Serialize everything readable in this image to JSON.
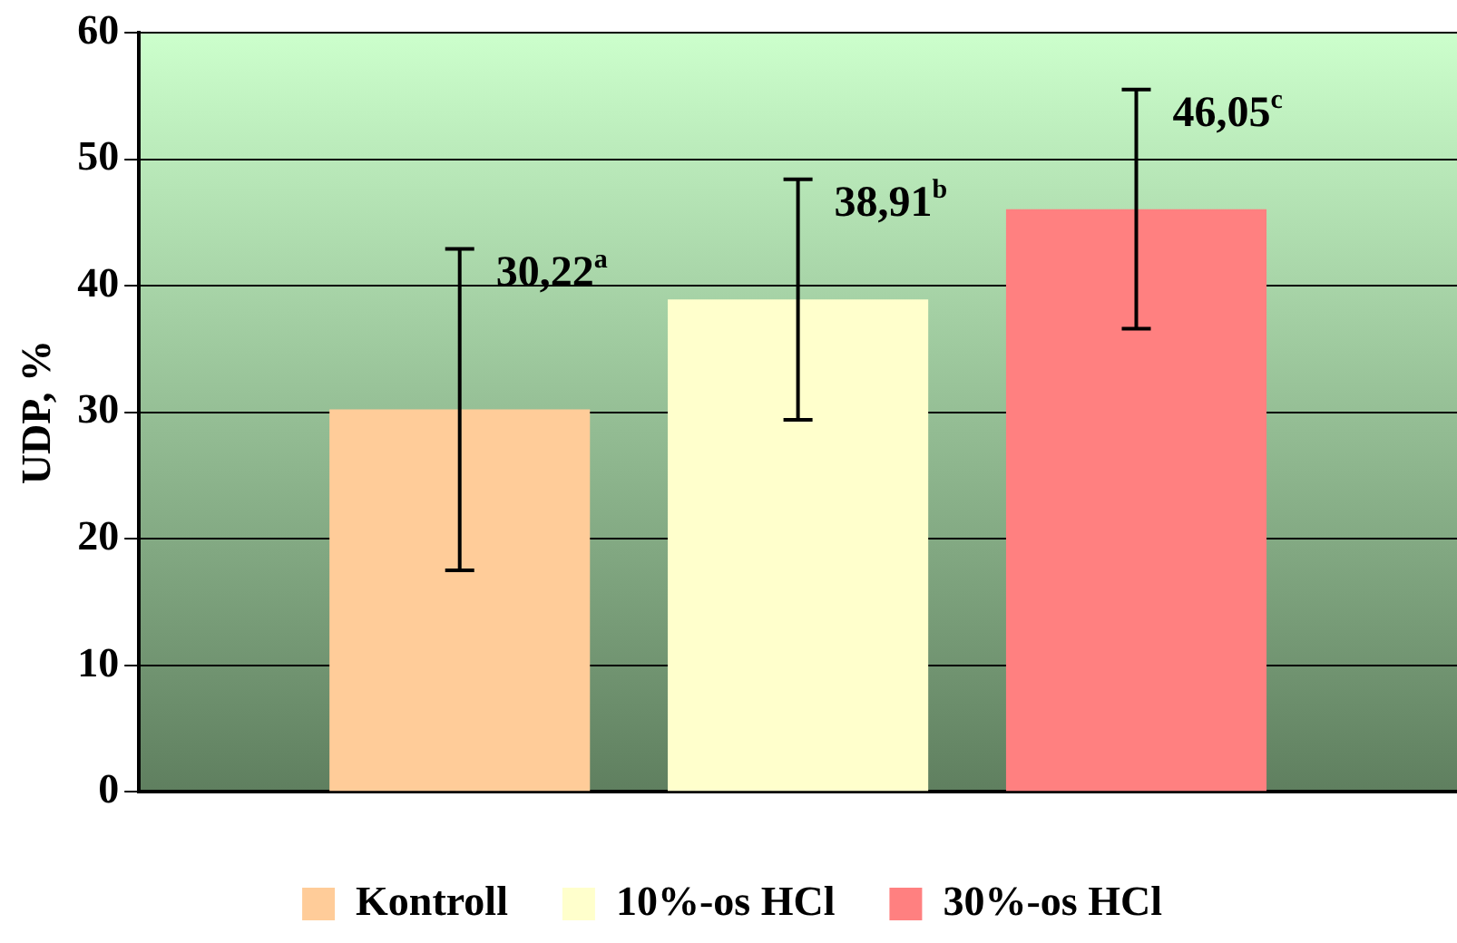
{
  "chart_data": {
    "type": "bar",
    "ylabel": "UDP, %",
    "categories": [
      null
    ],
    "series": [
      {
        "name": "Kontroll",
        "color": "#ffcc99",
        "values": [
          30.22
        ],
        "errors": [
          [
            17.5,
            42.9
          ]
        ],
        "value_labels": [
          "30,22$^{a}$"
        ]
      },
      {
        "name": "10%-os HCl",
        "color": "#ffffcc",
        "values": [
          38.91
        ],
        "errors": [
          [
            29.4,
            48.4
          ]
        ],
        "value_labels": [
          "38,91$^{b}$"
        ]
      },
      {
        "name": "30%-os HCl",
        "color": "#ff8080",
        "values": [
          46.05
        ],
        "errors": [
          [
            36.6,
            55.5
          ]
        ],
        "value_labels": [
          "46,05$^{c}$"
        ]
      }
    ],
    "ylim": [
      0,
      60
    ],
    "yticks": [
      0,
      10,
      20,
      30,
      40,
      50,
      60
    ],
    "grid": "y",
    "legend": "bottom"
  }
}
